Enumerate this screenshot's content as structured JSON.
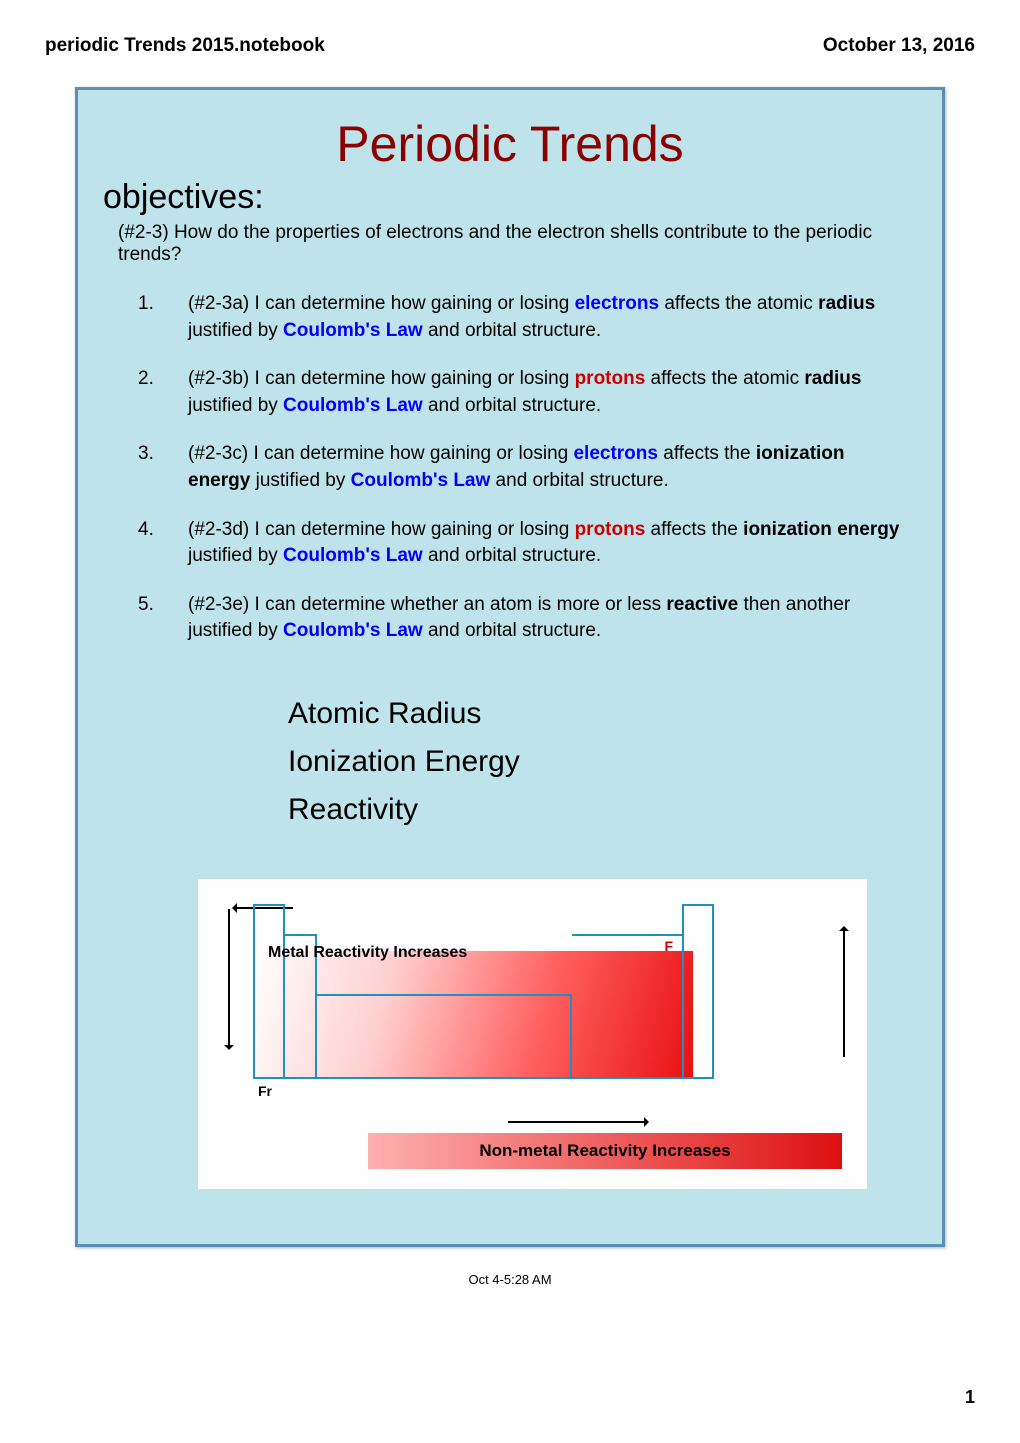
{
  "header": {
    "left": "periodic Trends 2015.notebook",
    "right": "October 13, 2016"
  },
  "title": {
    "text": "Periodic Trends",
    "color": "#8b0000"
  },
  "subheading": "objectives:",
  "question": "(#2-3) How do the properties of electrons and the electron shells contribute to the periodic trends?",
  "objectives": [
    {
      "num": "1.",
      "parts": [
        {
          "t": "(#2-3a) I can determine how gaining or losing "
        },
        {
          "t": "electrons",
          "style": "blue"
        },
        {
          "t": " affects the atomic "
        },
        {
          "t": "radius",
          "style": "bold"
        },
        {
          "t": " justified by "
        },
        {
          "t": "Coulomb's Law",
          "style": "blue"
        },
        {
          "t": " and orbital structure."
        }
      ]
    },
    {
      "num": "2.",
      "parts": [
        {
          "t": "(#2-3b) I can determine how gaining or losing "
        },
        {
          "t": "protons",
          "style": "red"
        },
        {
          "t": " affects the atomic "
        },
        {
          "t": "radius",
          "style": "bold"
        },
        {
          "t": " justified by "
        },
        {
          "t": "Coulomb's Law",
          "style": "blue"
        },
        {
          "t": " and orbital structure."
        }
      ]
    },
    {
      "num": "3.",
      "parts": [
        {
          "t": "(#2-3c) I can determine how gaining or losing "
        },
        {
          "t": "electrons",
          "style": "blue"
        },
        {
          "t": " affects the "
        },
        {
          "t": "ionization energy",
          "style": "bold"
        },
        {
          "t": " justified by "
        },
        {
          "t": "Coulomb's Law",
          "style": "blue"
        },
        {
          "t": " and orbital structure."
        }
      ]
    },
    {
      "num": "4.",
      "parts": [
        {
          "t": "(#2-3d) I can determine how gaining or losing "
        },
        {
          "t": "protons",
          "style": "red"
        },
        {
          "t": " affects the "
        },
        {
          "t": "ionization energy",
          "style": "bold"
        },
        {
          "t": " justified by "
        },
        {
          "t": "Coulomb's Law",
          "style": "blue"
        },
        {
          "t": " and orbital structure."
        }
      ]
    },
    {
      "num": "5.",
      "parts": [
        {
          "t": "(#2-3e) I can determine whether an atom is more or less "
        },
        {
          "t": "reactive",
          "style": "bold"
        },
        {
          "t": " then another justified by "
        },
        {
          "t": "Coulomb's Law",
          "style": "blue"
        },
        {
          "t": " and orbital structure."
        }
      ]
    }
  ],
  "topics": [
    "Atomic Radius",
    "Ionization Energy",
    "Reactivity"
  ],
  "chart": {
    "metal_label": "Metal Reactivity Increases",
    "nonmetal_label": "Non-metal Reactivity Increases",
    "fr": "Fr",
    "f": "F",
    "outline_color": "#2090c0",
    "gradient_start": "#ffffff",
    "gradient_end": "#e81010",
    "bar_start": "#ffb0b0",
    "bar_end": "#dd1010"
  },
  "timestamp": "Oct 4-5:28 AM",
  "page_num": "1"
}
